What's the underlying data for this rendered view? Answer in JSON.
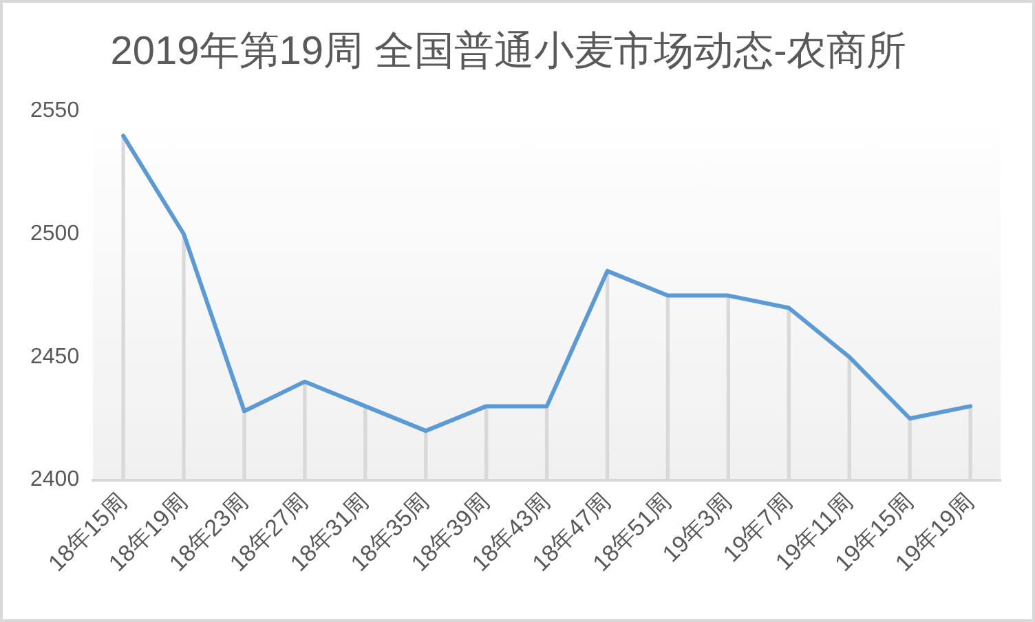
{
  "chart_data": {
    "type": "line",
    "title": "2019年第19周 全国普通小麦市场动态-农商所",
    "categories": [
      "18年15周",
      "18年19周",
      "18年23周",
      "18年27周",
      "18年31周",
      "18年35周",
      "18年39周",
      "18年43周",
      "18年47周",
      "18年51周",
      "19年3周",
      "19年7周",
      "19年11周",
      "19年15周",
      "19年19周"
    ],
    "series": [
      {
        "type": "bar",
        "color": "#d9d9d9",
        "values": [
          2540,
          2500,
          2428,
          2440,
          2430,
          2420,
          2430,
          2430,
          2485,
          2475,
          2475,
          2470,
          2450,
          2425,
          2430
        ]
      },
      {
        "color": "#5b9bd5",
        "values": [
          2540,
          2500,
          2428,
          2440,
          2430,
          2420,
          2430,
          2430,
          2485,
          2475,
          2475,
          2470,
          2450,
          2425,
          2430
        ]
      }
    ],
    "ylim": [
      2400,
      2550
    ],
    "yticks": [
      2400,
      2450,
      2500,
      2550
    ],
    "grid": false,
    "legend": false,
    "marker": "none",
    "line_style": "solid"
  }
}
